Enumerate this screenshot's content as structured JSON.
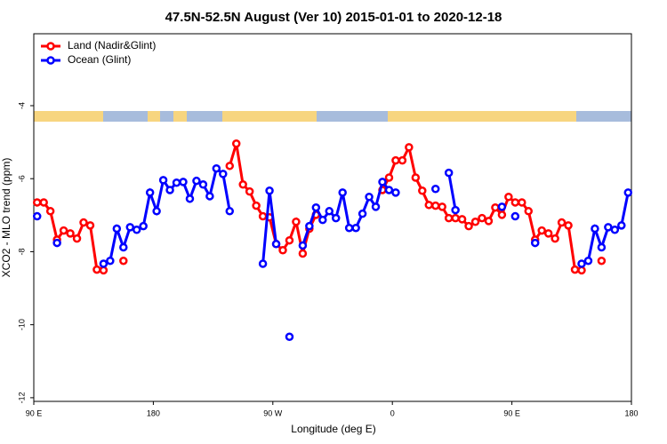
{
  "chart_data": {
    "type": "line",
    "title": "47.5N-52.5N August (Ver 10)   2015-01-01 to 2020-12-18",
    "xlabel": "Longitude (deg E)",
    "ylabel": "XCO2 - MLO trend (ppm)",
    "xlim": [
      90,
      540
    ],
    "ylim": [
      -12.1,
      -2.03
    ],
    "xticks": [
      {
        "value": 90,
        "label": "90 E"
      },
      180,
      {
        "value": 270,
        "label": "90 W"
      },
      {
        "value": 360,
        "label": "0"
      },
      {
        "value": 450,
        "label": "90 E"
      },
      {
        "value": 540,
        "label": "180"
      }
    ],
    "yticks": [
      -4,
      -6,
      -8,
      -10,
      -12
    ],
    "legend": "topleft",
    "series": [
      {
        "name": "Land (Nadir&Glint)",
        "color": "#ff0000",
        "x": [
          92.5,
          97.5,
          102.5,
          107.5,
          112.5,
          117.5,
          122.5,
          127.5,
          132.5,
          137.5,
          142.5,
          150,
          157.5,
          200,
          237.5,
          242.5,
          247.5,
          252.5,
          257.5,
          262.5,
          267.5,
          272.5,
          277.5,
          282.5,
          287.5,
          292.5,
          297.5,
          302.5,
          330,
          352.5,
          357.5,
          362.5,
          367.5,
          372.5,
          377.5,
          382.5,
          387.5,
          392.5,
          397.5,
          402.5,
          407.5,
          412.5,
          417.5,
          422.5,
          427.5,
          432.5,
          437.5,
          442.5,
          447.5,
          452.5,
          457.5,
          462.5,
          467.5,
          472.5,
          477.5,
          482.5,
          487.5,
          492.5,
          497.5,
          502.5,
          510,
          517.5
        ],
        "values": [
          -6.65,
          -6.65,
          -6.89,
          -7.67,
          -7.42,
          -7.5,
          -7.64,
          -7.2,
          -7.28,
          -8.49,
          -8.51,
          null,
          -8.25,
          null,
          -5.65,
          -5.04,
          -6.16,
          -6.35,
          -6.74,
          -7.03,
          -7.06,
          -7.79,
          -7.96,
          -7.69,
          -7.18,
          -8.05,
          -7.37,
          -6.99,
          null,
          -6.31,
          -5.97,
          -5.5,
          -5.5,
          -5.14,
          -5.97,
          -6.33,
          -6.72,
          -6.74,
          -6.77,
          -7.08,
          -7.08,
          -7.11,
          -7.3,
          -7.18,
          -7.08,
          -7.16,
          -6.79,
          -6.99,
          -6.5,
          -6.65,
          -6.65,
          -6.89,
          -7.67,
          -7.42,
          -7.5,
          -7.64,
          -7.2,
          -7.28,
          -8.49,
          -8.51,
          null,
          -8.25
        ]
      },
      {
        "name": "Ocean (Glint)",
        "color": "#0000ff",
        "x": [
          92.5,
          100,
          107.5,
          125,
          142.5,
          147.5,
          152.5,
          157.5,
          162.5,
          167.5,
          172.5,
          177.5,
          182.5,
          187.5,
          192.5,
          197.5,
          202.5,
          207.5,
          212.5,
          217.5,
          222.5,
          227.5,
          232.5,
          237.5,
          250,
          262.5,
          267.5,
          272.5,
          277.5,
          282.5,
          287.5,
          292.5,
          297.5,
          302.5,
          307.5,
          312.5,
          317.5,
          322.5,
          327.5,
          332.5,
          337.5,
          342.5,
          347.5,
          352.5,
          357.5,
          362.5,
          377.5,
          392.5,
          397.5,
          402.5,
          407.5,
          425,
          442.5,
          447.5,
          452.5,
          460,
          467.5,
          485,
          502.5,
          507.5,
          512.5,
          517.5,
          522.5,
          527.5,
          532.5,
          537.5
        ],
        "values": [
          -7.03,
          null,
          -7.76,
          null,
          -8.33,
          -8.25,
          -7.37,
          -7.88,
          -7.33,
          -7.4,
          -7.3,
          -6.38,
          -6.89,
          -6.04,
          -6.31,
          -6.11,
          -6.09,
          -6.55,
          -6.06,
          -6.16,
          -6.48,
          -5.72,
          -5.87,
          -6.89,
          null,
          -8.33,
          -6.33,
          -7.79,
          null,
          -10.33,
          null,
          -7.83,
          -7.3,
          -6.79,
          -7.13,
          -6.89,
          -7.08,
          -6.38,
          -7.35,
          -7.35,
          -6.96,
          -6.5,
          -6.77,
          -6.09,
          -6.31,
          -6.38,
          null,
          -6.28,
          null,
          -5.84,
          -6.86,
          null,
          -6.77,
          null,
          -7.03,
          null,
          -7.76,
          null,
          -8.33,
          -8.25,
          -7.37,
          -7.88,
          -7.33,
          -7.4,
          -7.28,
          -6.38
        ]
      }
    ]
  }
}
